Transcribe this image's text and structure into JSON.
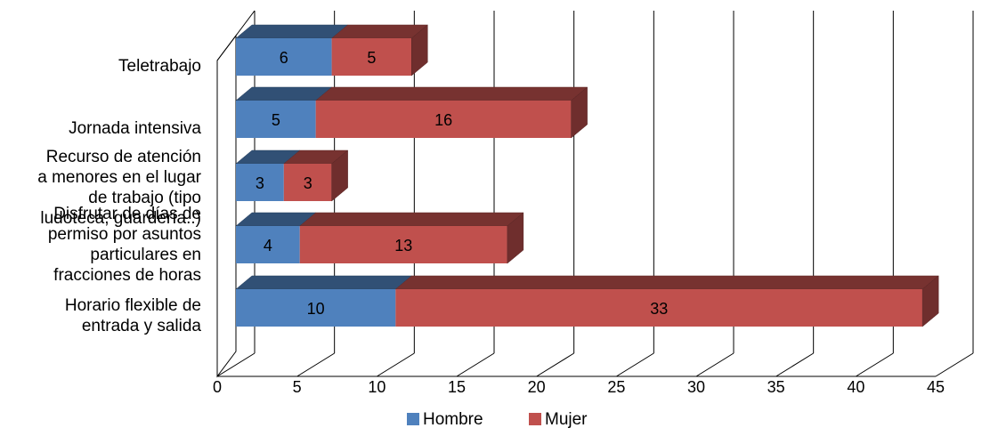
{
  "chart_data": {
    "type": "bar",
    "orientation": "horizontal",
    "stacked": true,
    "three_d": true,
    "categories": [
      "Teletrabajo",
      "Jornada intensiva",
      "Recurso de atención a menores en el lugar de trabajo (tipo ludoteca, guardería..)",
      "Disfrutar de días de permiso por asuntos particulares en fracciones de horas",
      "Horario flexible de entrada y salida"
    ],
    "category_lines": [
      [
        "Teletrabajo"
      ],
      [
        "Jornada intensiva"
      ],
      [
        "Recurso de atención",
        "a menores en el lugar",
        "de trabajo (tipo",
        "ludoteca, guardería..)"
      ],
      [
        "Disfrutar de días de",
        "permiso por asuntos",
        "particulares en",
        "fracciones de horas"
      ],
      [
        "Horario flexible de",
        "entrada y salida"
      ]
    ],
    "series": [
      {
        "name": "Hombre",
        "color": "#4F81BD",
        "values": [
          6,
          5,
          3,
          4,
          10
        ]
      },
      {
        "name": "Mujer",
        "color": "#C0504D",
        "values": [
          5,
          16,
          3,
          13,
          33
        ]
      }
    ],
    "xlim": [
      0,
      45
    ],
    "xticks": [
      0,
      5,
      10,
      15,
      20,
      25,
      30,
      35,
      40,
      45
    ],
    "grid": true,
    "legend_position": "bottom",
    "data_labels": true
  }
}
